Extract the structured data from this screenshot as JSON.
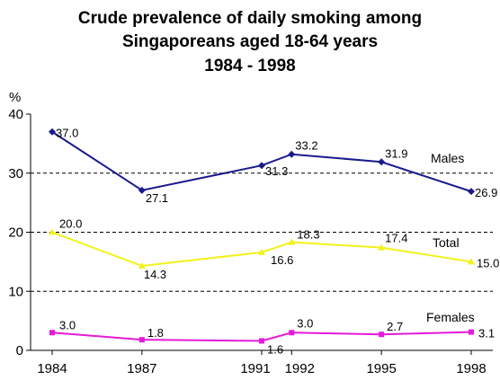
{
  "chart_data": {
    "type": "line",
    "title": [
      "Crude prevalence of daily smoking among",
      "Singaporeans aged 18-64 years",
      "1984 - 1998"
    ],
    "ylabel": "%",
    "xlabel": "",
    "ylim": [
      0,
      40
    ],
    "yticks": [
      0,
      10,
      20,
      30,
      40
    ],
    "x": [
      1984,
      1987,
      1991,
      1992,
      1995,
      1998
    ],
    "xtick_labels": [
      "1984",
      "1987",
      "1991",
      "1992",
      "1995",
      "1998"
    ],
    "grid": "horizontal dashed at 10, 20, 30",
    "legend": "inline labels at right",
    "series": [
      {
        "name": "Males",
        "color": "#1a1a8c",
        "marker": "diamond",
        "values": [
          37.0,
          27.1,
          31.3,
          33.2,
          31.9,
          26.9
        ],
        "labels": [
          "37.0",
          "27.1",
          "31.3",
          "33.2",
          "31.9",
          "26.9"
        ]
      },
      {
        "name": "Total",
        "color": "#f2f21a",
        "marker": "triangle",
        "values": [
          20.0,
          14.3,
          16.6,
          18.3,
          17.4,
          15.0
        ],
        "labels": [
          "20.0",
          "14.3",
          "16.6",
          "18.3",
          "17.4",
          "15.0"
        ]
      },
      {
        "name": "Females",
        "color": "#e619d9",
        "marker": "square",
        "values": [
          3.0,
          1.8,
          1.6,
          3.0,
          2.7,
          3.1
        ],
        "labels": [
          "3.0",
          "1.8",
          "1.6",
          "3.0",
          "2.7",
          "3.1"
        ]
      }
    ]
  }
}
